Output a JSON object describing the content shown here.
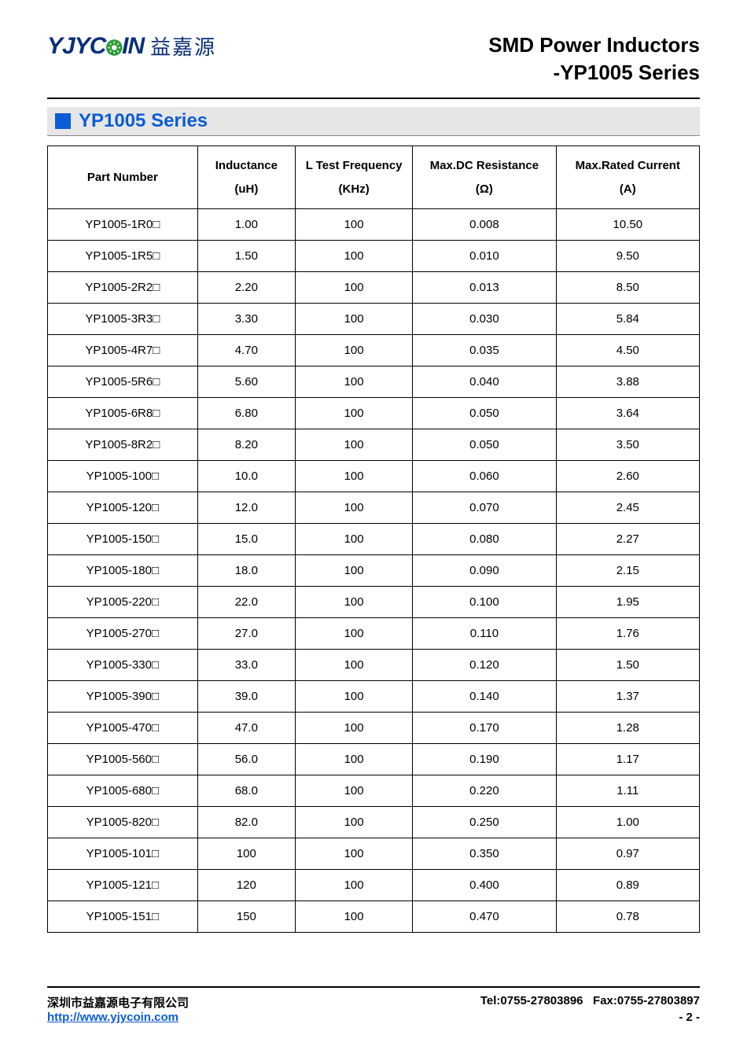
{
  "header": {
    "logo_en_part1": "YJYC",
    "logo_en_part2": "IN",
    "logo_cn": "益嘉源",
    "title_line1": "SMD Power Inductors",
    "title_line2": "-YP1005 Series"
  },
  "series": {
    "title": "YP1005 Series",
    "accent_color": "#0b5cd6",
    "bar_bg": "#e6e6e6"
  },
  "table": {
    "columns": [
      {
        "label": "Part Number",
        "unit": "",
        "width": "23%",
        "align": "left"
      },
      {
        "label": "Inductance",
        "unit": "(uH)",
        "width": "15%",
        "align": "center"
      },
      {
        "label": "L Test Frequency",
        "unit": "(KHz)",
        "width": "18%",
        "align": "center"
      },
      {
        "label": "Max.DC Resistance",
        "unit": "(Ω)",
        "width": "22%",
        "align": "center"
      },
      {
        "label": "Max.Rated Current",
        "unit": "(A)",
        "width": "22%",
        "align": "center"
      }
    ],
    "rows": [
      [
        "YP1005-1R0□",
        "1.00",
        "100",
        "0.008",
        "10.50"
      ],
      [
        "YP1005-1R5□",
        "1.50",
        "100",
        "0.010",
        "9.50"
      ],
      [
        "YP1005-2R2□",
        "2.20",
        "100",
        "0.013",
        "8.50"
      ],
      [
        "YP1005-3R3□",
        "3.30",
        "100",
        "0.030",
        "5.84"
      ],
      [
        "YP1005-4R7□",
        "4.70",
        "100",
        "0.035",
        "4.50"
      ],
      [
        "YP1005-5R6□",
        "5.60",
        "100",
        "0.040",
        "3.88"
      ],
      [
        "YP1005-6R8□",
        "6.80",
        "100",
        "0.050",
        "3.64"
      ],
      [
        "YP1005-8R2□",
        "8.20",
        "100",
        "0.050",
        "3.50"
      ],
      [
        "YP1005-100□",
        "10.0",
        "100",
        "0.060",
        "2.60"
      ],
      [
        "YP1005-120□",
        "12.0",
        "100",
        "0.070",
        "2.45"
      ],
      [
        "YP1005-150□",
        "15.0",
        "100",
        "0.080",
        "2.27"
      ],
      [
        "YP1005-180□",
        "18.0",
        "100",
        "0.090",
        "2.15"
      ],
      [
        "YP1005-220□",
        "22.0",
        "100",
        "0.100",
        "1.95"
      ],
      [
        "YP1005-270□",
        "27.0",
        "100",
        "0.110",
        "1.76"
      ],
      [
        "YP1005-330□",
        "33.0",
        "100",
        "0.120",
        "1.50"
      ],
      [
        "YP1005-390□",
        "39.0",
        "100",
        "0.140",
        "1.37"
      ],
      [
        "YP1005-470□",
        "47.0",
        "100",
        "0.170",
        "1.28"
      ],
      [
        "YP1005-560□",
        "56.0",
        "100",
        "0.190",
        "1.17"
      ],
      [
        "YP1005-680□",
        "68.0",
        "100",
        "0.220",
        "1.11"
      ],
      [
        "YP1005-820□",
        "82.0",
        "100",
        "0.250",
        "1.00"
      ],
      [
        "YP1005-101□",
        "100",
        "100",
        "0.350",
        "0.97"
      ],
      [
        "YP1005-121□",
        "120",
        "100",
        "0.400",
        "0.89"
      ],
      [
        "YP1005-151□",
        "150",
        "100",
        "0.470",
        "0.78"
      ]
    ]
  },
  "footer": {
    "company": "深圳市益嘉源电子有限公司",
    "tel_label": "Tel:0755-27803896",
    "fax_label": "Fax:0755-27803897",
    "url": "http://www.yjycoin.com",
    "page": "- 2 -"
  }
}
